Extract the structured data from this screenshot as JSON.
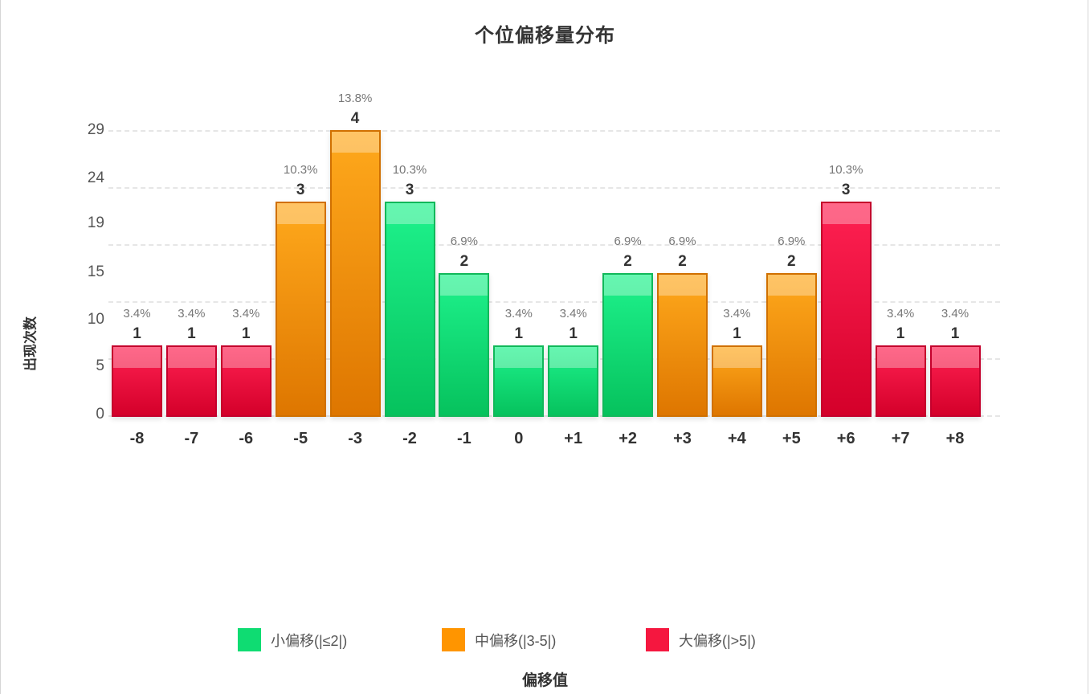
{
  "chart_data": {
    "type": "bar",
    "title": "个位偏移量分布",
    "xlabel": "偏移值",
    "ylabel": "出现次数",
    "categories": [
      "-8",
      "-7",
      "-6",
      "-5",
      "-3",
      "-2",
      "-1",
      "0",
      "+1",
      "+2",
      "+3",
      "+4",
      "+5",
      "+6",
      "+7",
      "+8"
    ],
    "values": [
      1,
      1,
      1,
      3,
      4,
      3,
      2,
      1,
      1,
      2,
      2,
      1,
      2,
      3,
      1,
      1
    ],
    "percentages": [
      "3.4%",
      "3.4%",
      "3.4%",
      "10.3%",
      "13.8%",
      "10.3%",
      "6.9%",
      "3.4%",
      "3.4%",
      "6.9%",
      "6.9%",
      "3.4%",
      "6.9%",
      "10.3%",
      "3.4%",
      "3.4%"
    ],
    "groups": [
      "large",
      "large",
      "large",
      "medium",
      "medium",
      "small",
      "small",
      "small",
      "small",
      "small",
      "medium",
      "medium",
      "medium",
      "large",
      "large",
      "large"
    ],
    "y_tick_labels": [
      "0",
      "5",
      "10",
      "15",
      "19",
      "24",
      "29"
    ],
    "ylim": [
      0,
      4
    ],
    "grid": true,
    "legend_position": "bottom",
    "legend": [
      {
        "key": "small",
        "label": "小偏移(|≤2|)",
        "color": "#0fdc72"
      },
      {
        "key": "medium",
        "label": "中偏移(|3-5|)",
        "color": "#ff9500"
      },
      {
        "key": "large",
        "label": "大偏移(|>5|)",
        "color": "#f5173f"
      }
    ]
  },
  "bars": [
    {
      "x": "-8",
      "count": "1",
      "pct": "3.4%"
    },
    {
      "x": "-7",
      "count": "1",
      "pct": "3.4%"
    },
    {
      "x": "-6",
      "count": "1",
      "pct": "3.4%"
    },
    {
      "x": "-5",
      "count": "3",
      "pct": "10.3%"
    },
    {
      "x": "-3",
      "count": "4",
      "pct": "13.8%"
    },
    {
      "x": "-2",
      "count": "3",
      "pct": "10.3%"
    },
    {
      "x": "-1",
      "count": "2",
      "pct": "6.9%"
    },
    {
      "x": "0",
      "count": "1",
      "pct": "3.4%"
    },
    {
      "x": "+1",
      "count": "1",
      "pct": "3.4%"
    },
    {
      "x": "+2",
      "count": "2",
      "pct": "6.9%"
    },
    {
      "x": "+3",
      "count": "2",
      "pct": "6.9%"
    },
    {
      "x": "+4",
      "count": "1",
      "pct": "3.4%"
    },
    {
      "x": "+5",
      "count": "2",
      "pct": "6.9%"
    },
    {
      "x": "+6",
      "count": "3",
      "pct": "10.3%"
    },
    {
      "x": "+7",
      "count": "1",
      "pct": "3.4%"
    },
    {
      "x": "+8",
      "count": "1",
      "pct": "3.4%"
    }
  ]
}
